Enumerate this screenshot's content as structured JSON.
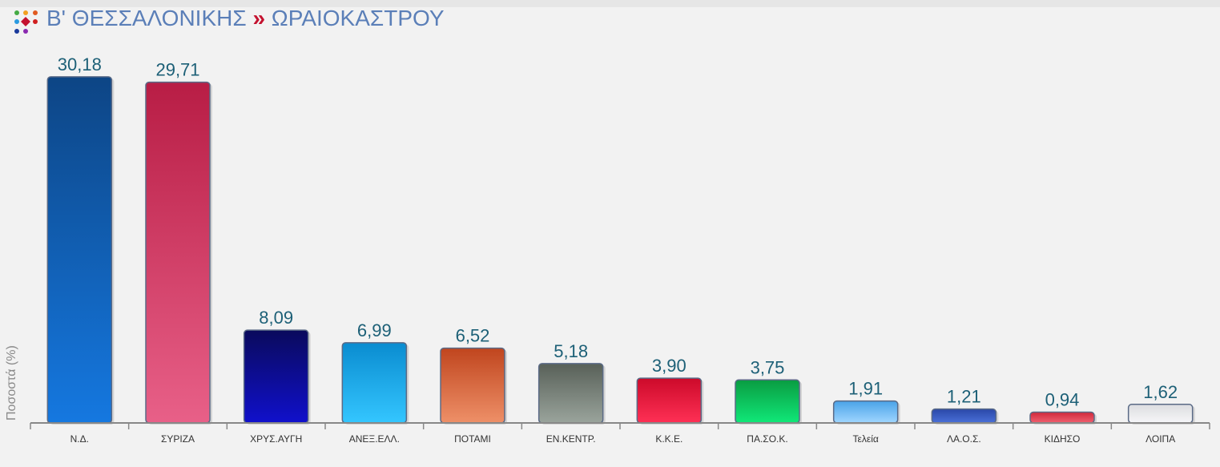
{
  "header": {
    "region": "Β' ΘΕΣΣΑΛΟΝΙΚΗΣ",
    "separator": "»",
    "area": "ΩΡΑΙΟΚΑΣΤΡΟΥ"
  },
  "colors": {
    "title": "#5b7fb8",
    "separator": "#c4122f",
    "value_label": "#1d6077",
    "axis": "#888888"
  },
  "chart_data": {
    "type": "bar",
    "ylabel": "Ποσοστά (%)",
    "ylim": [
      0,
      31.5
    ],
    "grid": false,
    "categories": [
      "Ν.Δ.",
      "ΣΥΡΙΖΑ",
      "ΧΡΥΣ.ΑΥΓΗ",
      "ΑΝΕΞ.ΕΛΛ.",
      "ΠΟΤΑΜΙ",
      "ΕΝ.ΚΕΝΤΡ.",
      "Κ.Κ.Ε.",
      "ΠΑ.ΣΟ.Κ.",
      "Τελεία",
      "ΛΑ.Ο.Σ.",
      "ΚΙΔΗΣΟ",
      "ΛΟΙΠΑ"
    ],
    "values": [
      30.18,
      29.71,
      8.09,
      6.99,
      6.52,
      5.18,
      3.9,
      3.75,
      1.91,
      1.21,
      0.94,
      1.62
    ],
    "labels": [
      "30,18",
      "29,71",
      "8,09",
      "6,99",
      "6,52",
      "5,18",
      "3,90",
      "3,75",
      "1,91",
      "1,21",
      "0,94",
      "1,62"
    ],
    "bar_colors": [
      [
        "#0d4585",
        "#1578e0"
      ],
      [
        "#b81d45",
        "#e86088"
      ],
      [
        "#0a0a5c",
        "#1010cc"
      ],
      [
        "#0a8cd0",
        "#34c6ff"
      ],
      [
        "#c0451e",
        "#ee9068"
      ],
      [
        "#586058",
        "#9aa49c"
      ],
      [
        "#cc0a2a",
        "#ff3055"
      ],
      [
        "#0a9c42",
        "#10e878"
      ],
      [
        "#4aa3e8",
        "#a0d6ff"
      ],
      [
        "#2a48a8",
        "#4a70d8"
      ],
      [
        "#d0283a",
        "#f06070"
      ],
      [
        "#dcdde0",
        "#f6f6f8"
      ]
    ]
  }
}
